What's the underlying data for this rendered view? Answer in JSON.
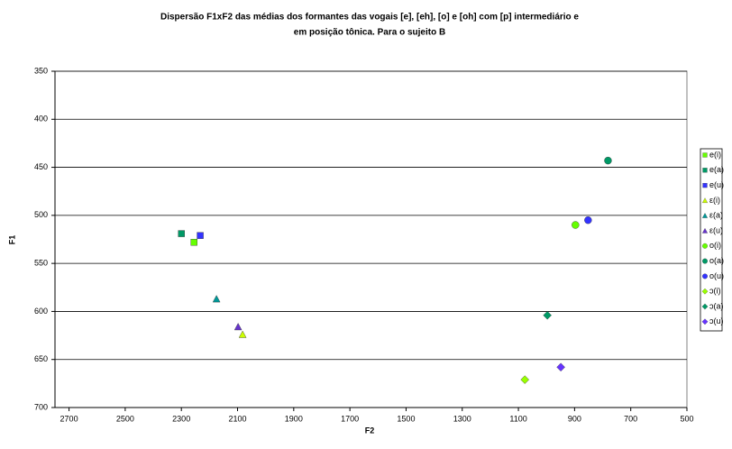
{
  "chart_data": {
    "type": "scatter",
    "title": [
      "Dispersão F1xF2 das médias dos formantes das vogais [e], [eh], [o] e  [oh]  com [p]  intermediário e",
      "em posição tônica. Para o sujeito B"
    ],
    "x_label": "F2",
    "y_label": "F1",
    "xlim": [
      2750,
      500
    ],
    "xticks": [
      2700,
      2500,
      2300,
      2100,
      1900,
      1700,
      1500,
      1300,
      1100,
      900,
      700,
      500
    ],
    "ylim": [
      350,
      700
    ],
    "yticks": [
      350,
      400,
      450,
      500,
      550,
      600,
      650,
      700
    ],
    "x_reversed": true,
    "y_reversed": true,
    "grid": true,
    "legend": "right",
    "series": [
      {
        "name": "e(i)",
        "color": "#66ff00",
        "marker": "square",
        "x": [
          2255
        ],
        "y": [
          528
        ]
      },
      {
        "name": "e(a)",
        "color": "#009966",
        "marker": "square",
        "x": [
          2300
        ],
        "y": [
          519
        ]
      },
      {
        "name": "e(u)",
        "color": "#3333ff",
        "marker": "square",
        "x": [
          2233
        ],
        "y": [
          521
        ]
      },
      {
        "name": "ε(i)",
        "color": "#ccff00",
        "marker": "triangle",
        "x": [
          2082
        ],
        "y": [
          624
        ]
      },
      {
        "name": "ε(a)",
        "color": "#009999",
        "marker": "triangle",
        "x": [
          2175
        ],
        "y": [
          587
        ]
      },
      {
        "name": "ε(u)",
        "color": "#6633cc",
        "marker": "triangle",
        "x": [
          2098
        ],
        "y": [
          616
        ]
      },
      {
        "name": "o(i)",
        "color": "#66ff00",
        "marker": "circle",
        "x": [
          897
        ],
        "y": [
          510
        ]
      },
      {
        "name": "o(a)",
        "color": "#009966",
        "marker": "circle",
        "x": [
          781
        ],
        "y": [
          443
        ]
      },
      {
        "name": "o(u)",
        "color": "#3333ff",
        "marker": "circle",
        "x": [
          852
        ],
        "y": [
          505
        ]
      },
      {
        "name": "ɔ(i)",
        "color": "#99ff00",
        "marker": "diamond",
        "x": [
          1077
        ],
        "y": [
          671
        ]
      },
      {
        "name": "ɔ(a)",
        "color": "#009966",
        "marker": "diamond",
        "x": [
          997
        ],
        "y": [
          604
        ]
      },
      {
        "name": "ɔ(u)",
        "color": "#6633ff",
        "marker": "diamond",
        "x": [
          949
        ],
        "y": [
          658
        ]
      }
    ]
  }
}
